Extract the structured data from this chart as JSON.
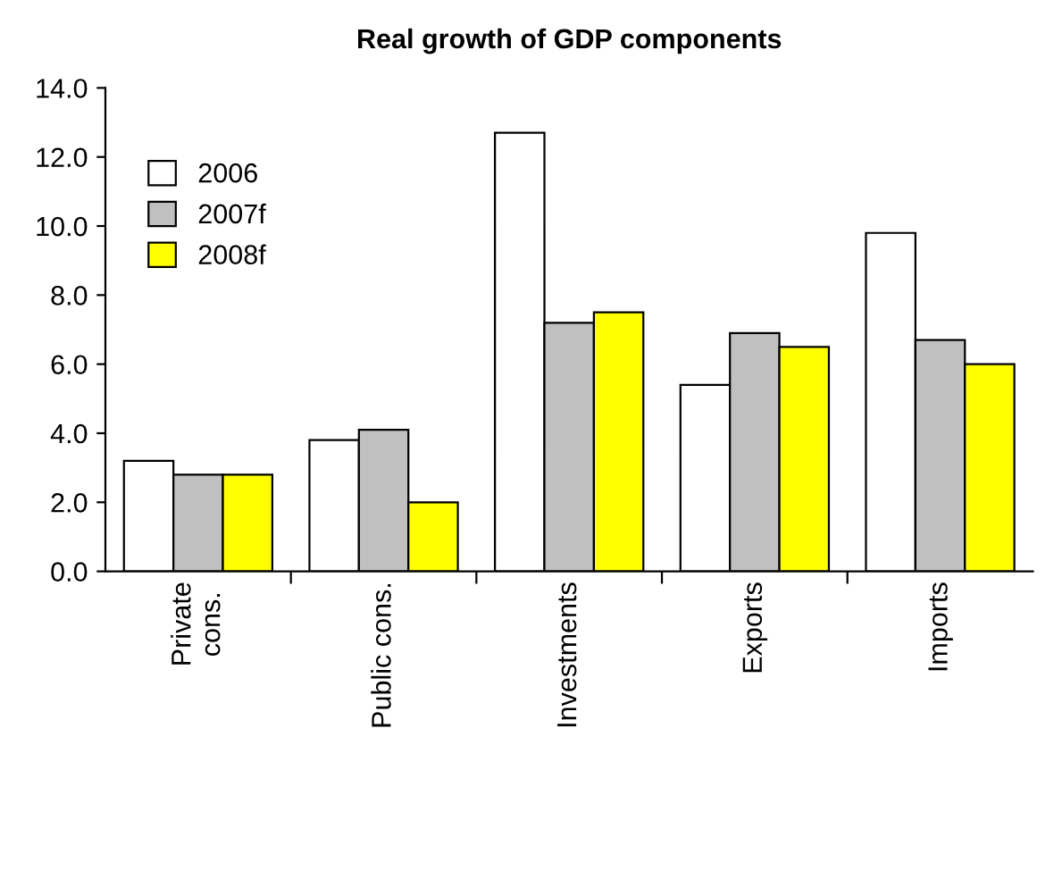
{
  "chart_data": {
    "type": "bar",
    "title": "Real growth of GDP components",
    "categories": [
      "Private\ncons.",
      "Public cons.",
      "Investments",
      "Exports",
      "Imports"
    ],
    "series": [
      {
        "name": "2006",
        "color": "#ffffff",
        "values": [
          3.2,
          3.8,
          12.7,
          5.4,
          9.8
        ]
      },
      {
        "name": "2007f",
        "color": "#c0c0c0",
        "values": [
          2.8,
          4.1,
          7.2,
          6.9,
          6.7
        ]
      },
      {
        "name": "2008f",
        "color": "#ffff00",
        "values": [
          2.8,
          2.0,
          7.5,
          6.5,
          6.0
        ]
      }
    ],
    "ylim": [
      0,
      14
    ],
    "yticks": [
      {
        "value": 0,
        "label": "0.0"
      },
      {
        "value": 2,
        "label": "2.0"
      },
      {
        "value": 4,
        "label": "4.0"
      },
      {
        "value": 6,
        "label": "6.0"
      },
      {
        "value": 8,
        "label": "8.0"
      },
      {
        "value": 10,
        "label": "10.0"
      },
      {
        "value": 12,
        "label": "12.0"
      },
      {
        "value": 14,
        "label": "14.0"
      }
    ],
    "grid": false,
    "legend": "top left"
  }
}
